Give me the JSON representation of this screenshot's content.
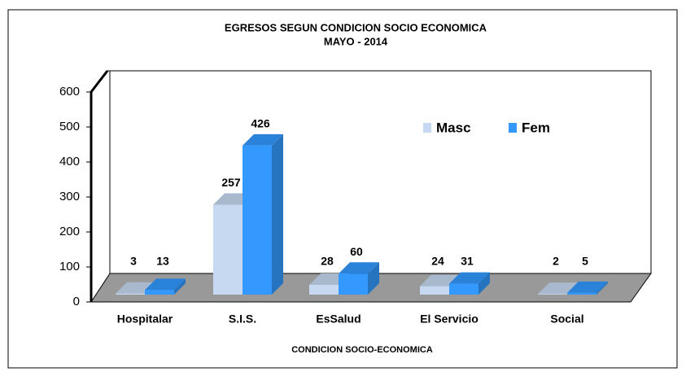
{
  "chart_data": {
    "type": "bar3d",
    "title": "EGRESOS SEGUN CONDICION  SOCIO ECONOMICA",
    "subtitle": "MAYO -  2014",
    "xlabel": "CONDICION SOCIO-ECONOMICA",
    "categories": [
      "Hospitalar",
      "S.I.S.",
      "EsSalud",
      "El Servicio",
      "Social"
    ],
    "series": [
      {
        "name": "Masc",
        "color": "#c6d9f1",
        "values": [
          3,
          257,
          28,
          24,
          2
        ]
      },
      {
        "name": "Fem",
        "color": "#3399ff",
        "values": [
          13,
          426,
          60,
          31,
          5
        ]
      }
    ],
    "ylim": [
      0,
      600
    ],
    "yticks": [
      0,
      100,
      200,
      300,
      400,
      500,
      600
    ],
    "legend": "top-right"
  }
}
